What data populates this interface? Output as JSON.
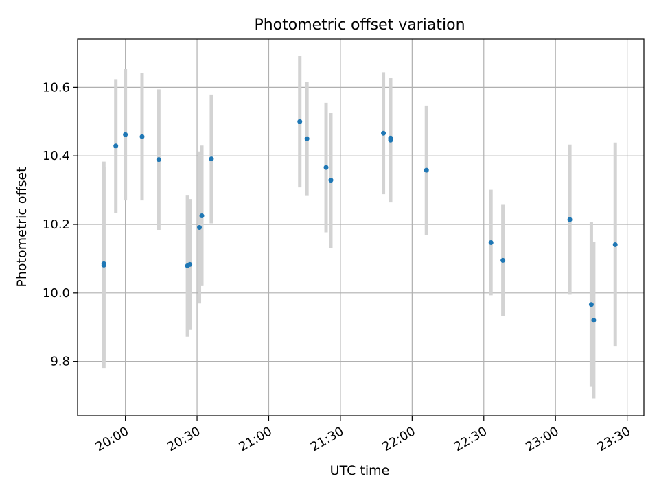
{
  "chart_data": {
    "type": "scatter",
    "title": "Photometric offset variation",
    "xlabel": "UTC time",
    "ylabel": "Photometric offset",
    "x_unit": "UTC time (HH:MM)",
    "xlim": [
      "19:40",
      "23:37"
    ],
    "ylim": [
      9.641,
      10.741
    ],
    "grid": true,
    "x_ticks": [
      "20:00",
      "20:30",
      "21:00",
      "21:30",
      "22:00",
      "22:30",
      "23:00",
      "23:30"
    ],
    "y_ticks": [
      "9.8",
      "10.0",
      "10.2",
      "10.4",
      "10.6"
    ],
    "colors": {
      "points": "#1f77b4",
      "errorbars": "#d3d3d3",
      "grid": "#b0b0b0"
    },
    "series": [
      {
        "points": [
          {
            "x": "19:51",
            "y": 10.081,
            "err": 0.302
          },
          {
            "x": "19:51",
            "y": 10.085,
            "err": 0.283
          },
          {
            "x": "19:56",
            "y": 10.429,
            "err": 0.195
          },
          {
            "x": "20:00",
            "y": 10.462,
            "err": 0.192
          },
          {
            "x": "20:07",
            "y": 10.456,
            "err": 0.186
          },
          {
            "x": "20:14",
            "y": 10.389,
            "err": 0.205
          },
          {
            "x": "20:26",
            "y": 10.079,
            "err": 0.207
          },
          {
            "x": "20:27",
            "y": 10.083,
            "err": 0.191
          },
          {
            "x": "20:31",
            "y": 10.191,
            "err": 0.222
          },
          {
            "x": "20:32",
            "y": 10.225,
            "err": 0.205
          },
          {
            "x": "20:36",
            "y": 10.391,
            "err": 0.188
          },
          {
            "x": "21:13",
            "y": 10.5,
            "err": 0.192
          },
          {
            "x": "21:16",
            "y": 10.45,
            "err": 0.165
          },
          {
            "x": "21:24",
            "y": 10.366,
            "err": 0.189
          },
          {
            "x": "21:26",
            "y": 10.329,
            "err": 0.197
          },
          {
            "x": "21:48",
            "y": 10.466,
            "err": 0.178
          },
          {
            "x": "21:51",
            "y": 10.446,
            "err": 0.182
          },
          {
            "x": "21:51",
            "y": 10.452,
            "err": 0.175
          },
          {
            "x": "22:06",
            "y": 10.358,
            "err": 0.189
          },
          {
            "x": "22:33",
            "y": 10.147,
            "err": 0.154
          },
          {
            "x": "22:38",
            "y": 10.095,
            "err": 0.162
          },
          {
            "x": "23:06",
            "y": 10.214,
            "err": 0.219
          },
          {
            "x": "23:15",
            "y": 9.966,
            "err": 0.24
          },
          {
            "x": "23:16",
            "y": 9.92,
            "err": 0.228
          },
          {
            "x": "23:25",
            "y": 10.141,
            "err": 0.298
          }
        ]
      }
    ]
  }
}
